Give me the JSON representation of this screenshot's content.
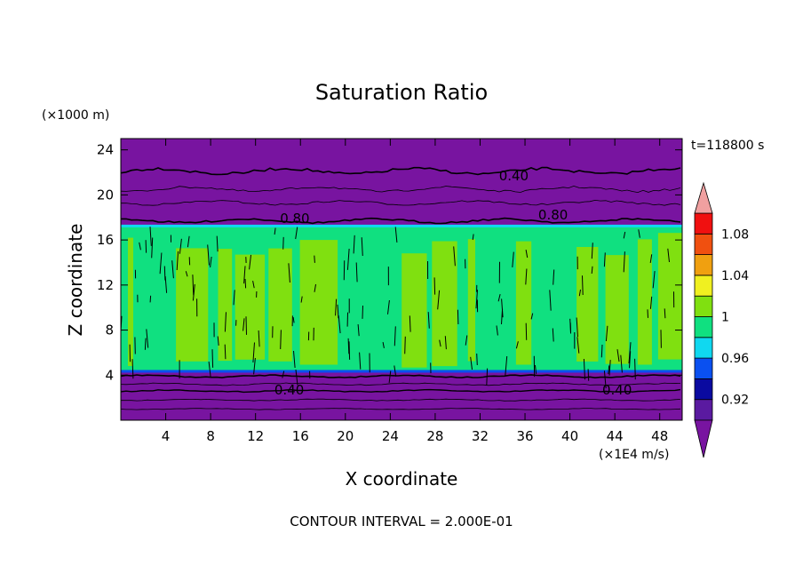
{
  "chart_data": {
    "type": "contour",
    "title": "Saturation Ratio",
    "xlabel": "X coordinate",
    "ylabel": "Z coordinate",
    "x_unit": "(×1E4 m/s)",
    "y_unit": "(×1000 m)",
    "time_label": "t=118800 s",
    "footer": "CONTOUR INTERVAL = 2.000E-01",
    "xlim": [
      0,
      50
    ],
    "ylim": [
      0,
      25
    ],
    "x_ticks": [
      4,
      8,
      12,
      16,
      20,
      24,
      28,
      32,
      36,
      40,
      44,
      48
    ],
    "x_tick_labels": [
      "4",
      "8",
      "12",
      "16",
      "20",
      "24",
      "28",
      "32",
      "36",
      "40",
      "44",
      "48"
    ],
    "y_ticks": [
      4,
      8,
      12,
      16,
      20,
      24
    ],
    "y_tick_labels": [
      "4",
      "8",
      "12",
      "16",
      "20",
      "24"
    ],
    "colorbar": {
      "levels": [
        0.9,
        0.92,
        0.94,
        0.96,
        0.98,
        1.0,
        1.02,
        1.04,
        1.06,
        1.08,
        1.1
      ],
      "tick_labels": [
        "0.92",
        "0.96",
        "1",
        "1.04",
        "1.08"
      ],
      "tick_values": [
        0.92,
        0.96,
        1.0,
        1.04,
        1.08
      ],
      "colors": [
        "#5a1aa0",
        "#0a0aa0",
        "#0a50f0",
        "#10d8f0",
        "#10e080",
        "#80e010",
        "#f0f020",
        "#f0a010",
        "#f05010",
        "#f01010"
      ],
      "under_color": "#7814a0",
      "over_color": "#f0a0a0"
    },
    "regions": [
      {
        "name": "upper-dry-layer",
        "z_range": [
          17.5,
          25
        ],
        "value_range": "below 0.90",
        "color": "#7814a0"
      },
      {
        "name": "cloud-layer",
        "z_range": [
          4.3,
          17.2
        ],
        "value_range": "0.98–1.02",
        "colors": [
          "#10e080",
          "#80e010"
        ]
      },
      {
        "name": "lower-dry-layer",
        "z_range": [
          0,
          4.3
        ],
        "value_range": "below 0.90",
        "color": "#7814a0"
      }
    ],
    "contour_labels": [
      {
        "text": "0.40",
        "x": 35,
        "z": 21.7
      },
      {
        "text": "0.80",
        "x": 15.5,
        "z": 17.9
      },
      {
        "text": "0.80",
        "x": 38.5,
        "z": 18.2
      },
      {
        "text": "0.40",
        "x": 15,
        "z": 2.7
      },
      {
        "text": "0.40",
        "x": 44.2,
        "z": 2.7
      }
    ]
  }
}
